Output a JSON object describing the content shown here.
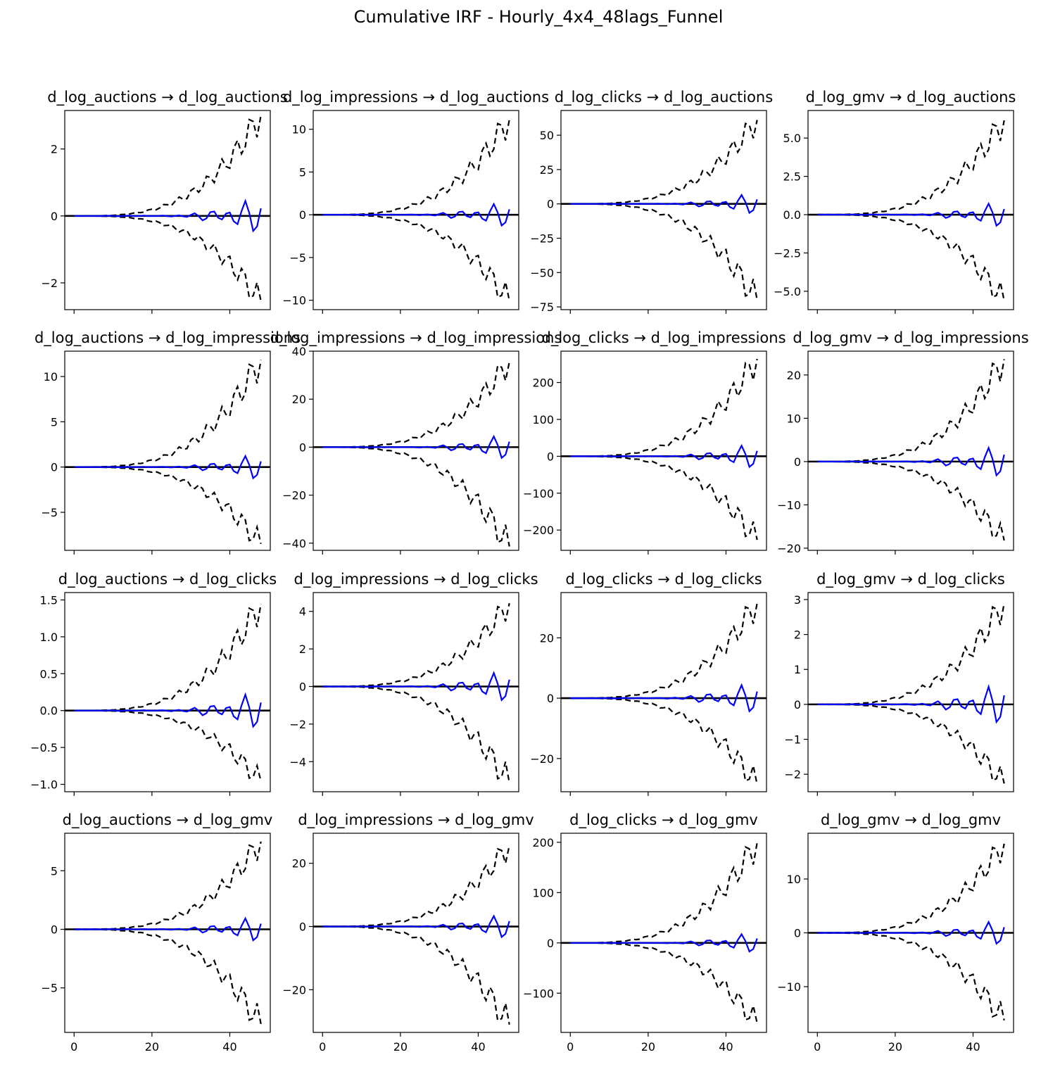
{
  "title": "Cumulative IRF - Hourly_4x4_48lags_Funnel",
  "colors": {
    "irf": "#0000ff",
    "band": "#000000",
    "zero": "#000000",
    "frame": "#000000"
  },
  "chart_data": {
    "type": "line",
    "grid": false,
    "legend": "none",
    "shared_x": {
      "range": [
        0,
        48
      ],
      "xlim": [
        -2.4,
        50.4
      ],
      "ticks": [
        0,
        20,
        40
      ]
    },
    "panels": [
      {
        "title": "d_log_auctions → d_log_auctions",
        "ylim": [
          -2.8,
          3.15
        ],
        "yticks": [
          -2,
          0,
          2
        ],
        "amp": 0.62,
        "band": 3.05,
        "low": -2.58
      },
      {
        "title": "d_log_impressions → d_log_auctions",
        "ylim": [
          -11.1,
          12.2
        ],
        "yticks": [
          -10,
          -5,
          0,
          5,
          10
        ],
        "amp": 1.75,
        "band": 11.3,
        "low": -10.2
      },
      {
        "title": "d_log_clicks → d_log_auctions",
        "ylim": [
          -77,
          68
        ],
        "yticks": [
          -75,
          -50,
          -25,
          0,
          25,
          50
        ],
        "amp": 9,
        "band": 62,
        "low": -71
      },
      {
        "title": "d_log_gmv → d_log_auctions",
        "ylim": [
          -6.2,
          6.8
        ],
        "yticks": [
          -5.0,
          -2.5,
          0.0,
          2.5,
          5.0
        ],
        "amp": 1.0,
        "band": 6.25,
        "low": -5.7
      },
      {
        "title": "d_log_auctions → d_log_impressions",
        "ylim": [
          -9.2,
          12.8
        ],
        "yticks": [
          -5,
          0,
          5,
          10
        ],
        "amp": 1.7,
        "band": 12,
        "low": -8.6
      },
      {
        "title": "d_log_impressions → d_log_impressions",
        "ylim": [
          -43,
          40
        ],
        "yticks": [
          -40,
          -20,
          0,
          20,
          40
        ],
        "amp": 6.2,
        "band": 36,
        "low": -42
      },
      {
        "title": "d_log_clicks → d_log_impressions",
        "ylim": [
          -255,
          285
        ],
        "yticks": [
          -200,
          -100,
          0,
          100,
          200
        ],
        "amp": 40,
        "band": 268,
        "low": -230
      },
      {
        "title": "d_log_gmv → d_log_impressions",
        "ylim": [
          -20.5,
          25.5
        ],
        "yticks": [
          -20,
          -10,
          0,
          10,
          20
        ],
        "amp": 4.4,
        "band": 24,
        "low": -18.5
      },
      {
        "title": "d_log_auctions → d_log_clicks",
        "ylim": [
          -1.1,
          1.6
        ],
        "yticks": [
          -1.0,
          -0.5,
          0.0,
          0.5,
          1.0,
          1.5
        ],
        "amp": 0.3,
        "band": 1.47,
        "low": -0.97
      },
      {
        "title": "d_log_impressions → d_log_clicks",
        "ylim": [
          -5.6,
          5.0
        ],
        "yticks": [
          -4,
          -2,
          0,
          2,
          4
        ],
        "amp": 1.0,
        "band": 4.5,
        "low": -5.2
      },
      {
        "title": "d_log_clicks → d_log_clicks",
        "ylim": [
          -31,
          35
        ],
        "yticks": [
          -20,
          0,
          20
        ],
        "amp": 6,
        "band": 32,
        "low": -29
      },
      {
        "title": "d_log_gmv → d_log_clicks",
        "ylim": [
          -2.5,
          3.2
        ],
        "yticks": [
          -2,
          -1,
          0,
          1,
          2,
          3
        ],
        "amp": 0.7,
        "band": 2.95,
        "low": -2.3
      },
      {
        "title": "d_log_auctions → d_log_gmv",
        "ylim": [
          -8.8,
          8.2
        ],
        "yticks": [
          -5,
          0,
          5
        ],
        "amp": 1.3,
        "band": 7.6,
        "low": -8.2
      },
      {
        "title": "d_log_impressions → d_log_gmv",
        "ylim": [
          -33.5,
          29.5
        ],
        "yticks": [
          -20,
          0,
          20
        ],
        "amp": 4.6,
        "band": 26,
        "low": -31.5
      },
      {
        "title": "d_log_clicks → d_log_gmv",
        "ylim": [
          -178,
          218
        ],
        "yticks": [
          -100,
          0,
          100,
          200
        ],
        "amp": 24,
        "band": 202,
        "low": -162
      },
      {
        "title": "d_log_gmv → d_log_gmv",
        "ylim": [
          -18.5,
          18.5
        ],
        "yticks": [
          -10,
          0,
          10
        ],
        "amp": 2.8,
        "band": 16.8,
        "low": -16.5
      }
    ]
  }
}
